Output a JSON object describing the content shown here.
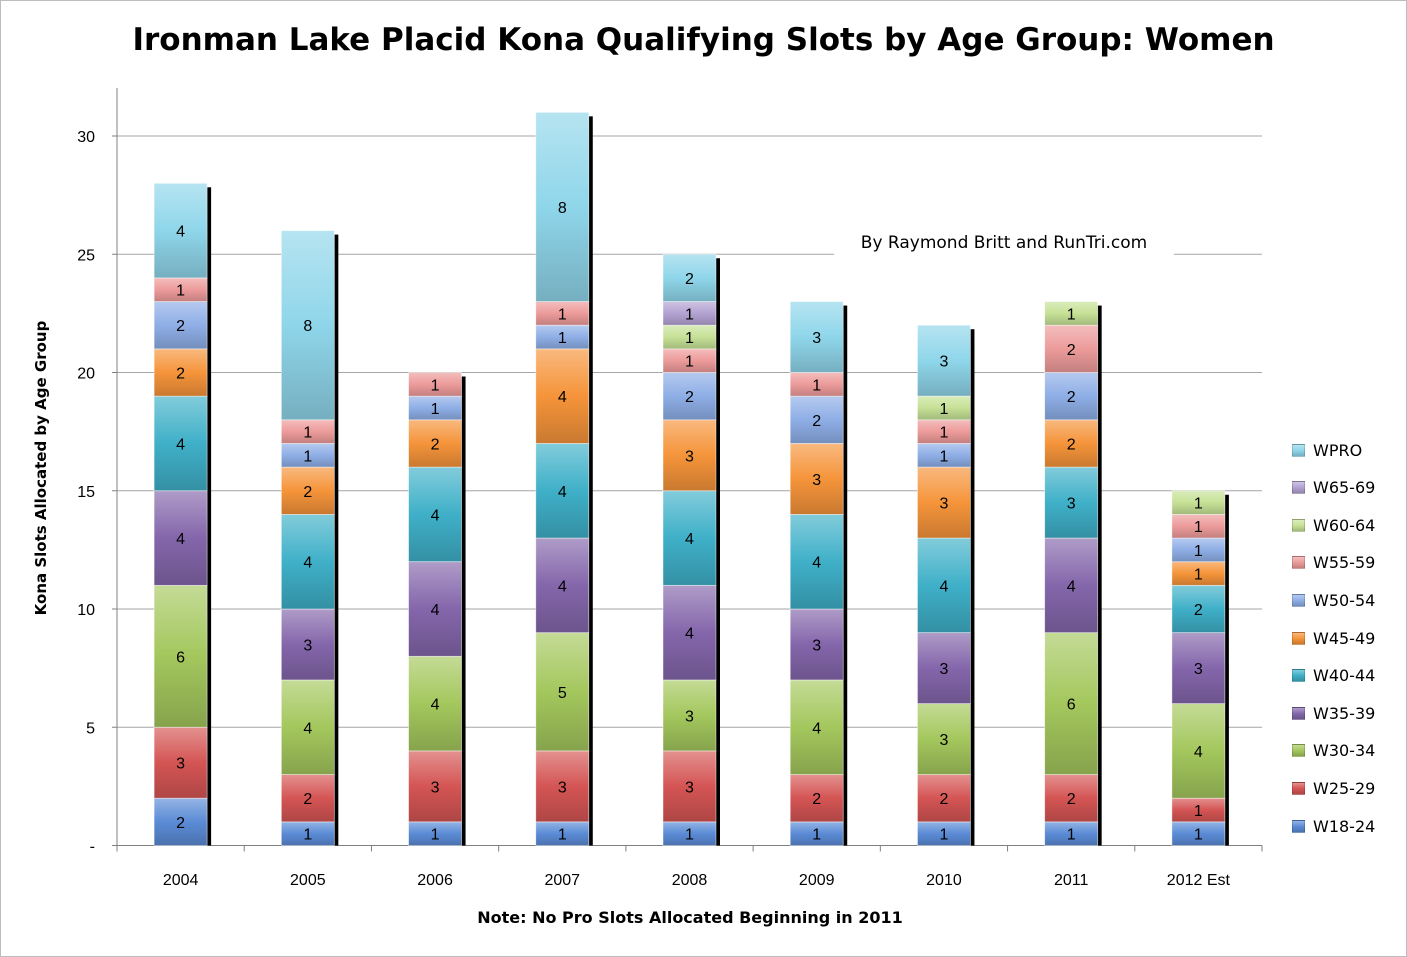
{
  "chart_data": {
    "type": "bar",
    "stacked": true,
    "title": "Ironman Lake Placid Kona Qualifying Slots by Age Group: Women",
    "ylabel": "Kona Slots Allocated by Age Group",
    "xlabel": "Note: No Pro Slots Allocated Beginning in 2011",
    "annotation": "By Raymond Britt and RunTri.com",
    "ylim": [
      0,
      32
    ],
    "yticks": [
      0,
      5,
      10,
      15,
      20,
      25,
      30
    ],
    "ytick_labels": [
      "-",
      "5",
      "10",
      "15",
      "20",
      "25",
      "30"
    ],
    "grid": true,
    "legend_position": "right",
    "categories": [
      "2004",
      "2005",
      "2006",
      "2007",
      "2008",
      "2009",
      "2010",
      "2011",
      "2012 Est"
    ],
    "series": [
      {
        "name": "W18-24",
        "color": "#5b8bd6",
        "values": [
          2,
          1,
          1,
          1,
          1,
          1,
          1,
          1,
          1
        ]
      },
      {
        "name": "W25-29",
        "color": "#d45554",
        "values": [
          3,
          2,
          3,
          3,
          3,
          2,
          2,
          2,
          1
        ]
      },
      {
        "name": "W30-34",
        "color": "#a4c75d",
        "values": [
          6,
          4,
          4,
          5,
          3,
          4,
          3,
          6,
          4
        ]
      },
      {
        "name": "W35-39",
        "color": "#8466ab",
        "values": [
          4,
          3,
          4,
          4,
          4,
          3,
          3,
          4,
          3
        ]
      },
      {
        "name": "W40-44",
        "color": "#3fb0c8",
        "values": [
          4,
          4,
          4,
          4,
          4,
          4,
          4,
          3,
          2
        ]
      },
      {
        "name": "W45-49",
        "color": "#f5943a",
        "values": [
          2,
          2,
          2,
          4,
          3,
          3,
          3,
          2,
          1
        ]
      },
      {
        "name": "W50-54",
        "color": "#8eaee6",
        "values": [
          2,
          1,
          1,
          1,
          2,
          2,
          1,
          2,
          1
        ]
      },
      {
        "name": "W55-59",
        "color": "#ec9b9a",
        "values": [
          1,
          1,
          1,
          1,
          1,
          1,
          1,
          2,
          1
        ]
      },
      {
        "name": "W60-64",
        "color": "#c6e196",
        "values": [
          0,
          0,
          0,
          0,
          1,
          0,
          1,
          1,
          1
        ]
      },
      {
        "name": "W65-69",
        "color": "#b3a2d2",
        "values": [
          0,
          0,
          0,
          0,
          1,
          0,
          0,
          0,
          0
        ]
      },
      {
        "name": "WPRO",
        "color": "#8fd6ea",
        "values": [
          4,
          8,
          0,
          8,
          2,
          3,
          3,
          0,
          0
        ]
      }
    ]
  }
}
